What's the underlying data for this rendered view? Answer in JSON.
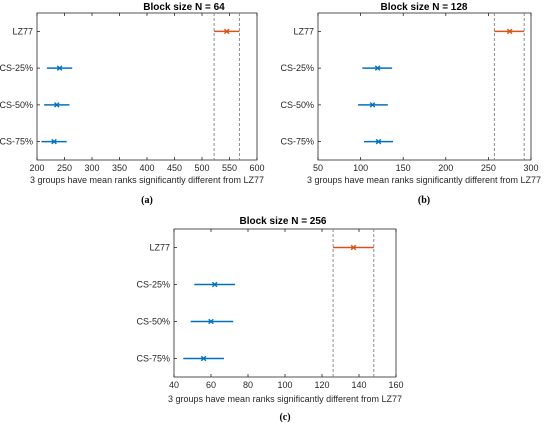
{
  "colors": {
    "highlight": "#D95319",
    "others": "#0072BD",
    "axis": "#262626",
    "guide": "#808080"
  },
  "chart_data": [
    {
      "type": "multiple-comparison-interval",
      "caption": "(a)",
      "title": "Block size N = 64",
      "xlabel": "3 groups have mean ranks significantly different from LZ77",
      "xlim": [
        200,
        600
      ],
      "xticks": [
        200,
        250,
        300,
        350,
        400,
        450,
        500,
        550,
        600
      ],
      "reference_lines": [
        522,
        568
      ],
      "groups": [
        {
          "label": "LZ77",
          "mean": 545,
          "low": 522,
          "high": 568,
          "highlight": true
        },
        {
          "label": "CS-25%",
          "mean": 241,
          "low": 218,
          "high": 264,
          "highlight": false
        },
        {
          "label": "CS-50%",
          "mean": 236,
          "low": 213,
          "high": 259,
          "highlight": false
        },
        {
          "label": "CS-75%",
          "mean": 231,
          "low": 208,
          "high": 254,
          "highlight": false
        }
      ]
    },
    {
      "type": "multiple-comparison-interval",
      "caption": "(b)",
      "title": "Block size N = 128",
      "xlabel": "3 groups have mean ranks significantly different from LZ77",
      "xlim": [
        50,
        300
      ],
      "xticks": [
        50,
        100,
        150,
        200,
        250,
        300
      ],
      "reference_lines": [
        257,
        292
      ],
      "groups": [
        {
          "label": "LZ77",
          "mean": 275,
          "low": 257,
          "high": 292,
          "highlight": true
        },
        {
          "label": "CS-25%",
          "mean": 120,
          "low": 102,
          "high": 137,
          "highlight": false
        },
        {
          "label": "CS-50%",
          "mean": 114,
          "low": 97,
          "high": 132,
          "highlight": false
        },
        {
          "label": "CS-75%",
          "mean": 121,
          "low": 104,
          "high": 138,
          "highlight": false
        }
      ]
    },
    {
      "type": "multiple-comparison-interval",
      "caption": "(c)",
      "title": "Block size N = 256",
      "xlabel": "3 groups have mean ranks significantly different from LZ77",
      "xlim": [
        40,
        160
      ],
      "xticks": [
        40,
        60,
        80,
        100,
        120,
        140,
        160
      ],
      "reference_lines": [
        126,
        148
      ],
      "groups": [
        {
          "label": "LZ77",
          "mean": 137,
          "low": 126,
          "high": 148,
          "highlight": true
        },
        {
          "label": "CS-25%",
          "mean": 62,
          "low": 51,
          "high": 73,
          "highlight": false
        },
        {
          "label": "CS-50%",
          "mean": 60,
          "low": 49,
          "high": 72,
          "highlight": false
        },
        {
          "label": "CS-75%",
          "mean": 56,
          "low": 45,
          "high": 67,
          "highlight": false
        }
      ]
    }
  ]
}
